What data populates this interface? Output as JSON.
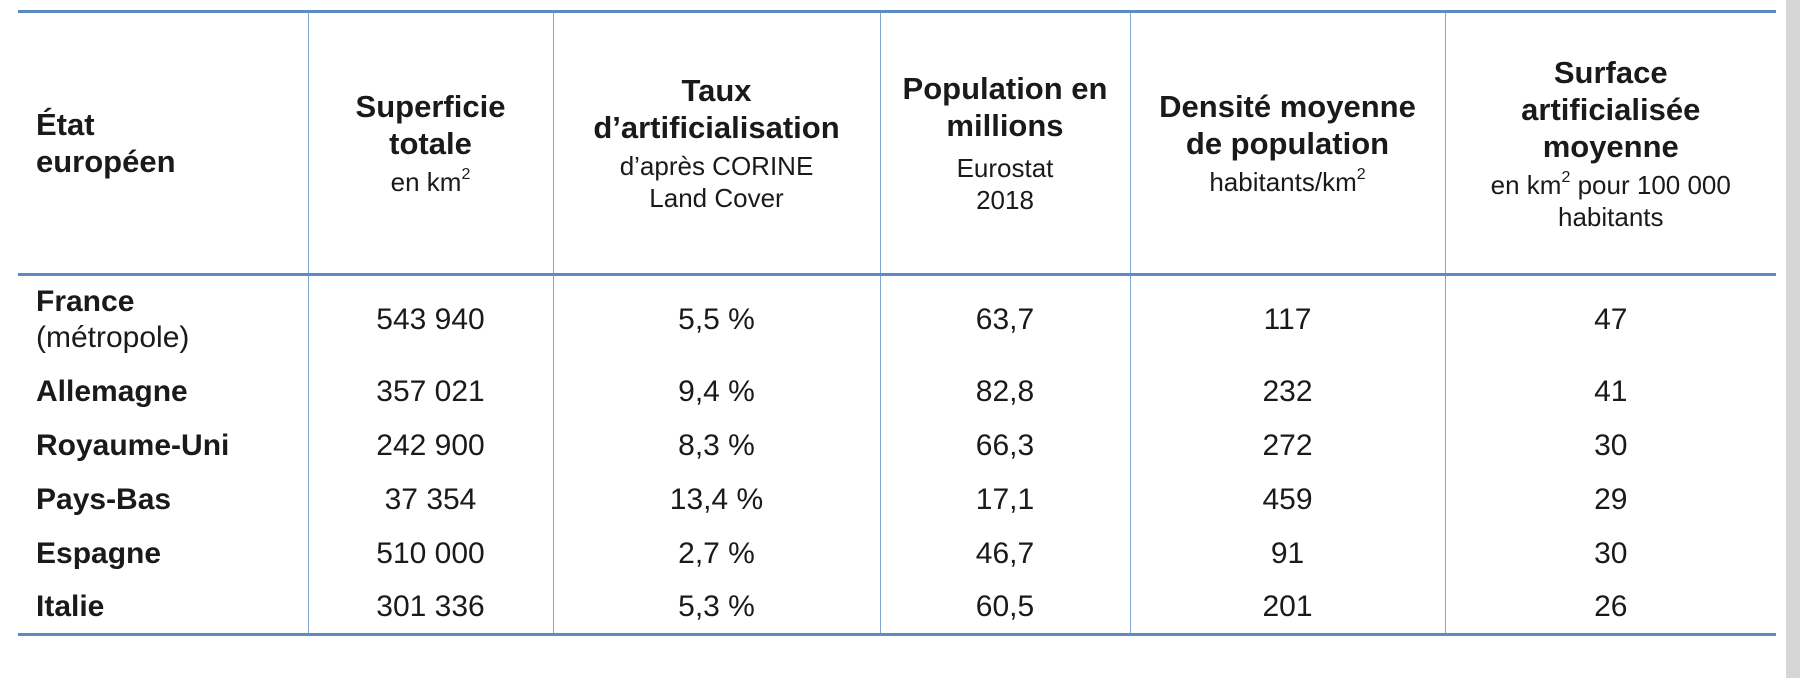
{
  "headers": [
    {
      "title": "État européen",
      "sub": "",
      "sup": "",
      "sub_after": ""
    },
    {
      "title": "Superficie totale",
      "sub": "en km",
      "sup": "2",
      "sub_after": ""
    },
    {
      "title": "Taux d’artificialisation",
      "sub": "d’après CORINE Land Cover",
      "sup": "",
      "sub_after": ""
    },
    {
      "title": "Population en millions",
      "sub": "Eurostat 2018",
      "sup": "",
      "sub_after": ""
    },
    {
      "title": "Densité moyenne de population",
      "sub": "habitants/km",
      "sup": "2",
      "sub_after": ""
    },
    {
      "title": "Surface artificialisée moyenne",
      "sub": "en km",
      "sup": "2",
      "sub_after": " pour 100 000 habitants"
    }
  ],
  "rows": [
    {
      "country": "France",
      "note": "(métropole)",
      "superficie": "543 940",
      "taux": "5,5 %",
      "population": "63,7",
      "densite": "117",
      "surface": "47"
    },
    {
      "country": "Allemagne",
      "note": "",
      "superficie": "357 021",
      "taux": "9,4 %",
      "population": "82,8",
      "densite": "232",
      "surface": "41"
    },
    {
      "country": "Royaume-Uni",
      "note": "",
      "superficie": "242 900",
      "taux": "8,3 %",
      "population": "66,3",
      "densite": "272",
      "surface": "30"
    },
    {
      "country": "Pays-Bas",
      "note": "",
      "superficie": "37 354",
      "taux": "13,4 %",
      "population": "17,1",
      "densite": "459",
      "surface": "29"
    },
    {
      "country": "Espagne",
      "note": "",
      "superficie": "510 000",
      "taux": "2,7 %",
      "population": "46,7",
      "densite": "91",
      "surface": "30"
    },
    {
      "country": "Italie",
      "note": "",
      "superficie": "301 336",
      "taux": "5,3 %",
      "population": "60,5",
      "densite": "201",
      "surface": "26"
    }
  ],
  "colors": {
    "rule": "#5b8bc1",
    "grid": "#7ea6cf"
  }
}
